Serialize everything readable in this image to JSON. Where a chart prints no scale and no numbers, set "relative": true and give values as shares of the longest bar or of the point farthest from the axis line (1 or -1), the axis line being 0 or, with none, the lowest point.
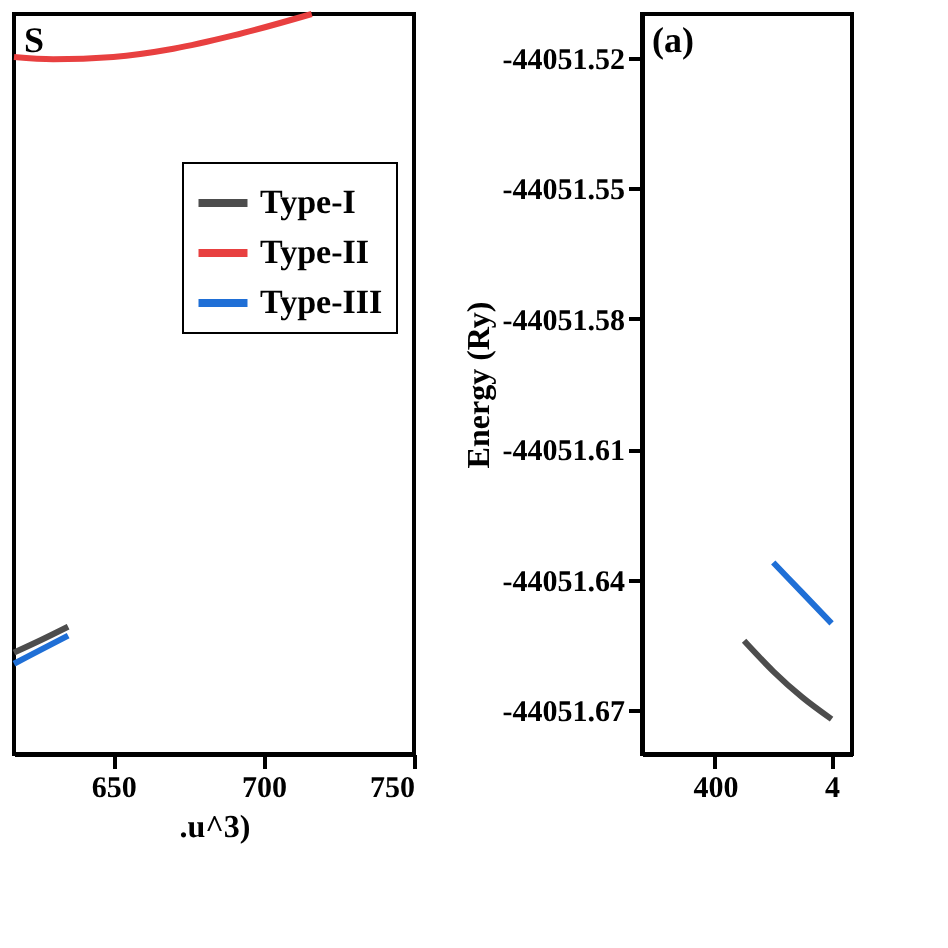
{
  "chart_data": [
    {
      "type": "line",
      "relative": true,
      "xlabel": ".u^3)",
      "xlim": [
        617,
        750
      ],
      "xticks": [
        650,
        700,
        750
      ],
      "tick_labels": "x",
      "legend": "right",
      "annotations": [
        "S"
      ],
      "series": [
        {
          "name": "Type-I",
          "color": "#4d4d4d",
          "x": [
            617,
            626,
            635
          ],
          "values": [
            0.137,
            0.154,
            0.172
          ]
        },
        {
          "name": "Type-II",
          "color": "#e84040",
          "x": [
            617,
            630,
            650,
            670,
            690,
            716
          ],
          "values": [
            0.942,
            0.939,
            0.942,
            0.953,
            0.971,
            1.0
          ]
        },
        {
          "name": "Type-III",
          "color": "#1f6fd6",
          "x": [
            617,
            626,
            635
          ],
          "values": [
            0.122,
            0.141,
            0.16
          ]
        }
      ]
    },
    {
      "type": "line",
      "ylabel": "Energy (Ry)",
      "categories": [
        null,
        null,
        "400",
        null,
        null,
        null,
        "4"
      ],
      "ylim": [
        -44051.68,
        -44051.51
      ],
      "yticks": [
        -44051.52,
        -44051.55,
        -44051.58,
        -44051.61,
        -44051.64,
        -44051.67
      ],
      "annotations": [
        "(a)"
      ],
      "series": [
        {
          "color": "#1f6fd6",
          "values": [
            null,
            null,
            null,
            null,
            -44051.636,
            -44051.643,
            -44051.65
          ]
        },
        {
          "color": "#4d4d4d",
          "values": [
            null,
            null,
            null,
            -44051.654,
            -44051.661,
            -44051.667,
            -44051.672
          ]
        }
      ]
    }
  ]
}
